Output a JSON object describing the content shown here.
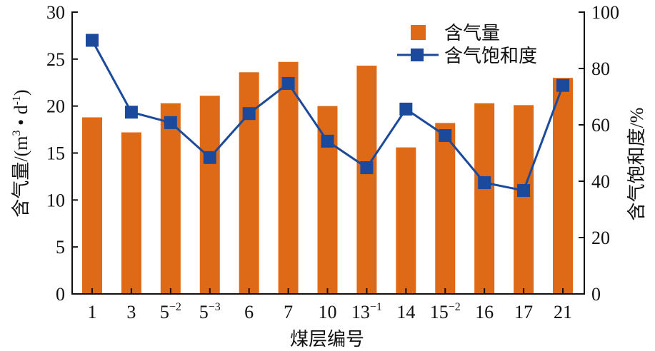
{
  "chart_data": {
    "type": "bar+line",
    "title": "",
    "xlabel": "煤层编号",
    "ylabel_left": "含气量/(m³·d⁻¹)",
    "ylabel_right": "含气饱和度/%",
    "categories": [
      "1",
      "3",
      "5⁻²",
      "5⁻³",
      "6",
      "7",
      "10",
      "13⁻¹",
      "14",
      "15⁻²",
      "16",
      "17",
      "21"
    ],
    "category_parts": [
      {
        "base": "1",
        "sup": ""
      },
      {
        "base": "3",
        "sup": ""
      },
      {
        "base": "5",
        "sup": "−2"
      },
      {
        "base": "5",
        "sup": "−3"
      },
      {
        "base": "6",
        "sup": ""
      },
      {
        "base": "7",
        "sup": ""
      },
      {
        "base": "10",
        "sup": ""
      },
      {
        "base": "13",
        "sup": "−1"
      },
      {
        "base": "14",
        "sup": ""
      },
      {
        "base": "15",
        "sup": "−2"
      },
      {
        "base": "16",
        "sup": ""
      },
      {
        "base": "17",
        "sup": ""
      },
      {
        "base": "21",
        "sup": ""
      }
    ],
    "series": [
      {
        "name": "含气量",
        "type": "bar",
        "axis": "left",
        "color": "#DE6A17",
        "values": [
          18.8,
          17.2,
          20.3,
          21.1,
          23.6,
          24.7,
          20.0,
          24.3,
          15.6,
          18.2,
          20.3,
          20.1,
          23.0
        ]
      },
      {
        "name": "含气饱和度",
        "type": "line",
        "axis": "right",
        "color": "#1B4A9C",
        "marker": "square",
        "values": [
          90.0,
          64.5,
          60.8,
          48.4,
          64.0,
          74.7,
          54.2,
          44.8,
          65.6,
          56.2,
          39.5,
          36.7,
          74.0
        ]
      }
    ],
    "ylim_left": [
      0,
      30
    ],
    "yticks_left": [
      0,
      5,
      10,
      15,
      20,
      25,
      30
    ],
    "ylim_right": [
      0,
      100
    ],
    "yticks_right": [
      0,
      20,
      40,
      60,
      80,
      100
    ],
    "grid": false,
    "legend_position": "upper right inside"
  },
  "labels": {
    "xlabel": "煤层编号",
    "ylabel_left_main": "含气量/(m",
    "ylabel_left_sup1": "3",
    "ylabel_left_mid": " • d",
    "ylabel_left_sup2": "-1",
    "ylabel_left_end": ")",
    "ylabel_right": "含气饱和度/%",
    "legend_bar": "含气量",
    "legend_line": "含气饱和度"
  }
}
